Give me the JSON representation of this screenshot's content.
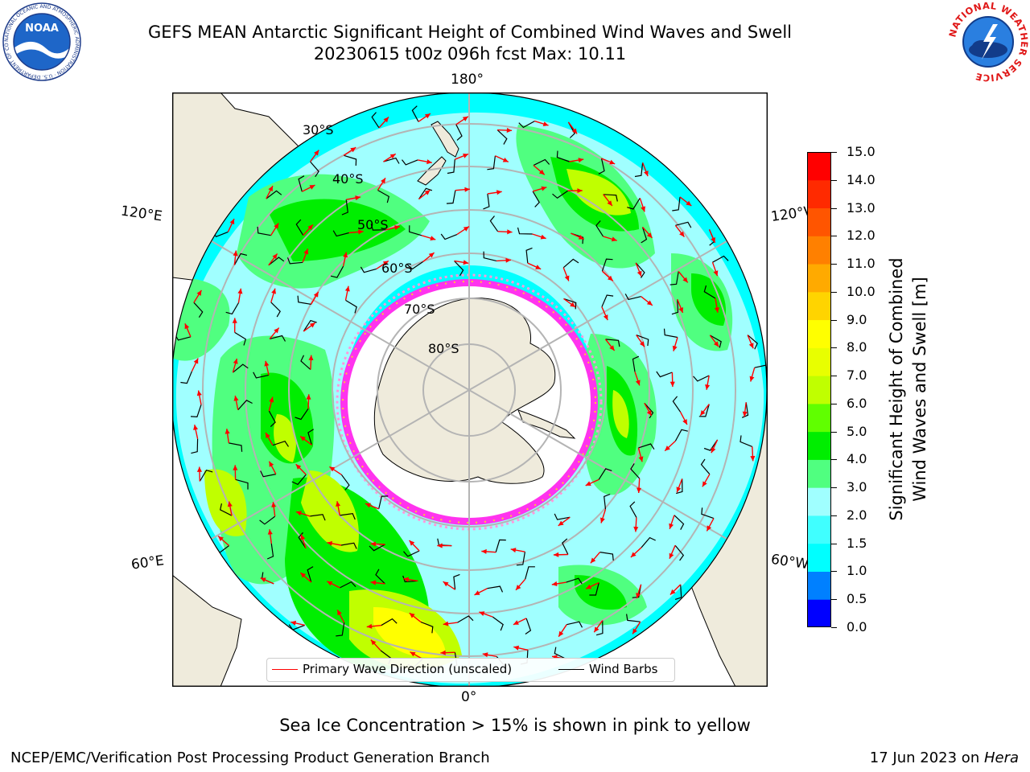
{
  "header": {
    "title": "GEFS MEAN Antarctic Significant Height of Combined Wind Waves and Swell",
    "subtitle": "20230615 t00z 096h fcst   Max: 10.11"
  },
  "logos": {
    "noaa": "NOAA",
    "noaa_ring": "NATIONAL OCEANIC AND ATMOSPHERIC ADMINISTRATION · U.S. DEPARTMENT OF COMMERCE",
    "nws_ring": "NATIONAL WEATHER SERVICE"
  },
  "map": {
    "longitude_labels": {
      "top": "180°",
      "bottom": "0°",
      "upper_left": "120°E",
      "upper_right": "120°W",
      "lower_left": "60°E",
      "lower_right": "60°W"
    },
    "latitude_labels": [
      "30°S",
      "40°S",
      "50°S",
      "60°S",
      "70°S",
      "80°S"
    ],
    "colors": {
      "ocean_base": "#00ffff",
      "land": "#efebdc",
      "ice_shelf": "#ffffff",
      "sea_ice": "#ff33ee",
      "graticule": "#b4b4b4"
    }
  },
  "colorbar": {
    "label_line1": "Significant Height of Combined",
    "label_line2": "Wind Waves and Swell [m]",
    "ticks": [
      "0.0",
      "0.5",
      "1.0",
      "1.5",
      "2.0",
      "3.0",
      "4.0",
      "5.0",
      "6.0",
      "7.0",
      "8.0",
      "9.0",
      "10.0",
      "11.0",
      "12.0",
      "13.0",
      "14.0",
      "15.0"
    ],
    "colors": [
      "#0000ff",
      "#0080ff",
      "#00ffff",
      "#40ffff",
      "#a0ffff",
      "#50ff80",
      "#00ee00",
      "#60ff00",
      "#c0ff00",
      "#e8ff00",
      "#ffff00",
      "#ffd400",
      "#ffaa00",
      "#ff8000",
      "#ff5500",
      "#ff2a00",
      "#ff0000"
    ]
  },
  "legend": {
    "wave_direction": "Primary Wave Direction (unscaled)",
    "wind_barbs": "Wind Barbs",
    "wave_color": "#ff0000",
    "barb_color": "#000000"
  },
  "footnote": "Sea Ice Concentration > 15% is shown in pink to yellow",
  "footer": {
    "credit": "NCEP/EMC/Verification Post Processing Product Generation Branch",
    "date": "17 Jun 2023 on ",
    "machine": "Hera"
  }
}
